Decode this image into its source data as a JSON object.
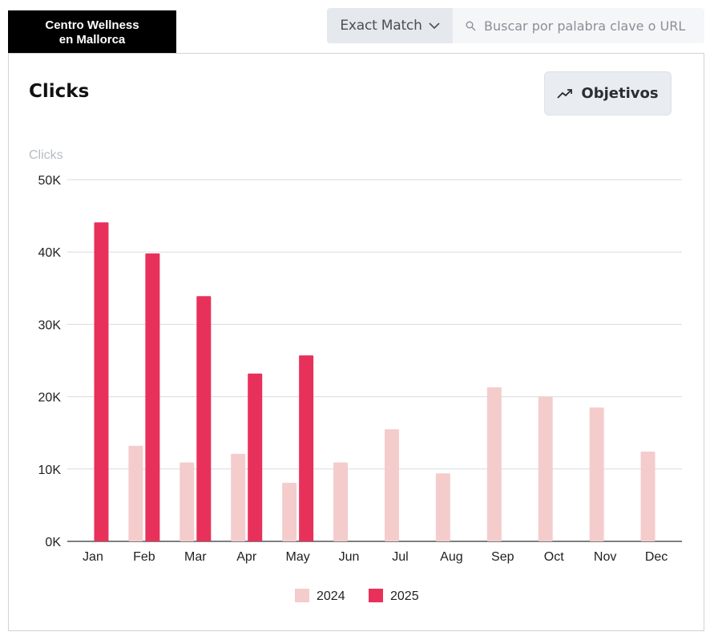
{
  "brand": {
    "line1": "Centro Wellness",
    "line2": "en Mallorca"
  },
  "search": {
    "match_label": "Exact Match",
    "placeholder": "Buscar por palabra clave o URL",
    "value": ""
  },
  "card": {
    "title": "Clicks",
    "goals_label": "Objetivos"
  },
  "icons": {
    "match_dropdown": "chevron-down-icon",
    "search": "search-icon",
    "goals": "trending-up-icon"
  },
  "chart_data": {
    "type": "bar",
    "ylabel": "Clicks",
    "xlabel": "",
    "ylim": [
      0,
      50000
    ],
    "yticks": [
      0,
      10000,
      20000,
      30000,
      40000,
      50000
    ],
    "ytick_labels": [
      "0K",
      "10K",
      "20K",
      "30K",
      "40K",
      "50K"
    ],
    "grid": true,
    "legend_position": "bottom-center",
    "categories": [
      "Jan",
      "Feb",
      "Mar",
      "Apr",
      "May",
      "Jun",
      "Jul",
      "Aug",
      "Sep",
      "Oct",
      "Nov",
      "Dec"
    ],
    "series": [
      {
        "name": "2024",
        "color": "#f4cccc",
        "values": [
          null,
          13200,
          10900,
          12100,
          8100,
          10900,
          15500,
          9400,
          21300,
          20000,
          18500,
          12400
        ]
      },
      {
        "name": "2025",
        "color": "#e8315a",
        "values": [
          44100,
          39800,
          33900,
          23200,
          25700,
          null,
          null,
          null,
          null,
          null,
          null,
          null
        ]
      }
    ]
  }
}
